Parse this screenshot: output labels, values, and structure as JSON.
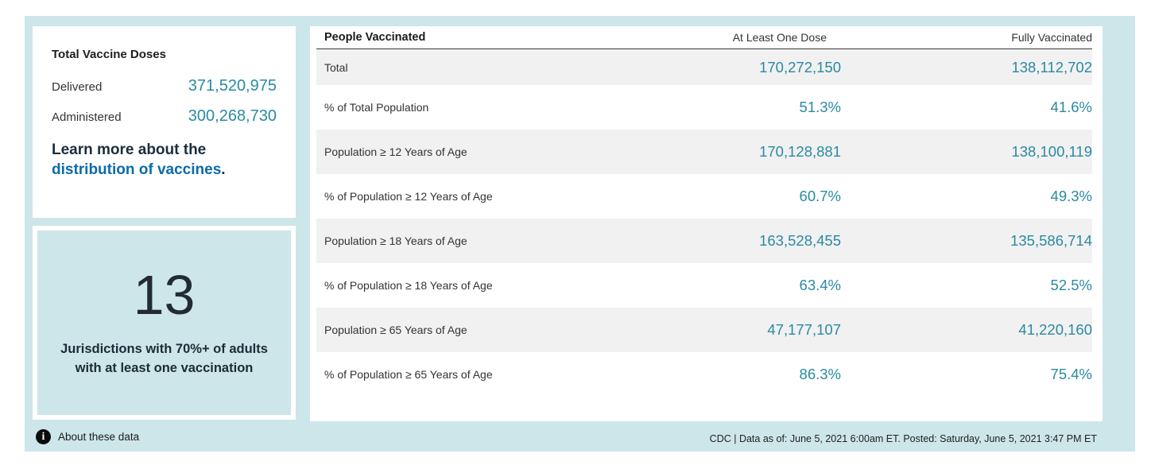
{
  "colors": {
    "panel_bg": "#cde6ea",
    "accent_teal": "#2a8aa3",
    "link_blue": "#0c6ba8",
    "stripe_gray": "#f1f1f1"
  },
  "doses_card": {
    "title": "Total Vaccine Doses",
    "rows": [
      {
        "label": "Delivered",
        "value": "371,520,975"
      },
      {
        "label": "Administered",
        "value": "300,268,730"
      }
    ],
    "learn_more_prefix": "Learn more about the ",
    "learn_more_link": "distribution of vaccines",
    "learn_more_suffix": "."
  },
  "jurisdictions_card": {
    "count": "13",
    "caption": "Jurisdictions with 70%+ of adults with at least one vaccination"
  },
  "table": {
    "headers": {
      "col1": "People Vaccinated",
      "col2": "At Least One Dose",
      "col3": "Fully Vaccinated"
    },
    "rows": [
      {
        "label": "Total",
        "one_dose": "170,272,150",
        "fully": "138,112,702"
      },
      {
        "label": "% of Total Population",
        "one_dose": "51.3%",
        "fully": "41.6%"
      },
      {
        "label": "Population ≥ 12 Years of Age",
        "one_dose": "170,128,881",
        "fully": "138,100,119"
      },
      {
        "label": "% of Population ≥ 12 Years of Age",
        "one_dose": "60.7%",
        "fully": "49.3%"
      },
      {
        "label": "Population ≥ 18 Years of Age",
        "one_dose": "163,528,455",
        "fully": "135,586,714"
      },
      {
        "label": "% of Population ≥ 18 Years of Age",
        "one_dose": "63.4%",
        "fully": "52.5%"
      },
      {
        "label": "Population ≥ 65 Years of Age",
        "one_dose": "47,177,107",
        "fully": "41,220,160"
      },
      {
        "label": "% of Population ≥ 65 Years of Age",
        "one_dose": "86.3%",
        "fully": "75.4%"
      }
    ]
  },
  "footer": {
    "info_icon_glyph": "i",
    "about_label": "About these data",
    "source": "CDC | Data as of: June 5, 2021 6:00am ET. Posted: Saturday, June 5, 2021 3:47 PM ET"
  }
}
